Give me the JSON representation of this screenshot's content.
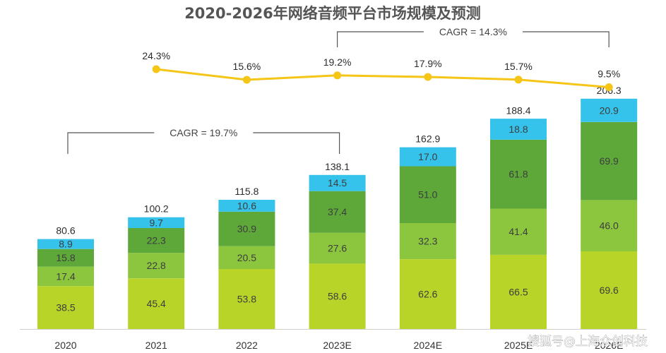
{
  "chart_data": {
    "type": "bar",
    "stacked": true,
    "title": "2020-2026年网络音频平台市场规模及预测",
    "categories": [
      "2020",
      "2021",
      "2022",
      "2023E",
      "2024E",
      "2025E",
      "2026E"
    ],
    "series": [
      {
        "name": "segment-1",
        "color": "#b8d429",
        "values": [
          38.5,
          45.4,
          53.8,
          58.6,
          62.6,
          66.5,
          69.6
        ]
      },
      {
        "name": "segment-2",
        "color": "#8cc63e",
        "values": [
          17.4,
          22.8,
          20.5,
          27.6,
          32.3,
          41.4,
          46.0
        ]
      },
      {
        "name": "segment-3",
        "color": "#5ea83a",
        "values": [
          15.8,
          22.3,
          30.9,
          37.4,
          51.0,
          61.8,
          69.9
        ]
      },
      {
        "name": "segment-4",
        "color": "#35c3eb",
        "values": [
          8.9,
          9.7,
          10.6,
          14.5,
          17.0,
          18.8,
          20.9
        ]
      }
    ],
    "value_labels": [
      [
        "38.5",
        "45.4",
        "53.8",
        "58.6",
        "62.6",
        "66.5",
        "69.6"
      ],
      [
        "17.4",
        "22.8",
        "20.5",
        "27.6",
        "32.3",
        "41.4",
        "46.0"
      ],
      [
        "15.8",
        "22.3",
        "30.9",
        "37.4",
        "51.0",
        "61.8",
        "69.9"
      ],
      [
        "8.9",
        "9.7",
        "10.6",
        "14.5",
        "17.0",
        "18.8",
        "20.9"
      ]
    ],
    "totals": [
      80.6,
      100.2,
      115.8,
      138.1,
      162.9,
      188.4,
      206.3
    ],
    "total_labels": [
      "80.6",
      "100.2",
      "115.8",
      "138.1",
      "162.9",
      "188.4",
      "206.3"
    ],
    "growth_line": {
      "name": "growth-rate",
      "color": "#f5c518",
      "values": [
        24.3,
        15.6,
        19.2,
        17.9,
        15.7,
        9.5
      ],
      "labels": [
        "24.3%",
        "15.6%",
        "19.2%",
        "17.9%",
        "15.7%",
        "9.5%"
      ],
      "categories": [
        "2021",
        "2022",
        "2023E",
        "2024E",
        "2025E",
        "2026E"
      ]
    },
    "annotations": [
      {
        "text": "CAGR = 19.7%",
        "from": "2020",
        "to": "2023E"
      },
      {
        "text": "CAGR = 14.3%",
        "from": "2023E",
        "to": "2026E"
      }
    ],
    "ylim": [
      0,
      220
    ]
  },
  "watermark": "搜狐号@上海众创科技"
}
